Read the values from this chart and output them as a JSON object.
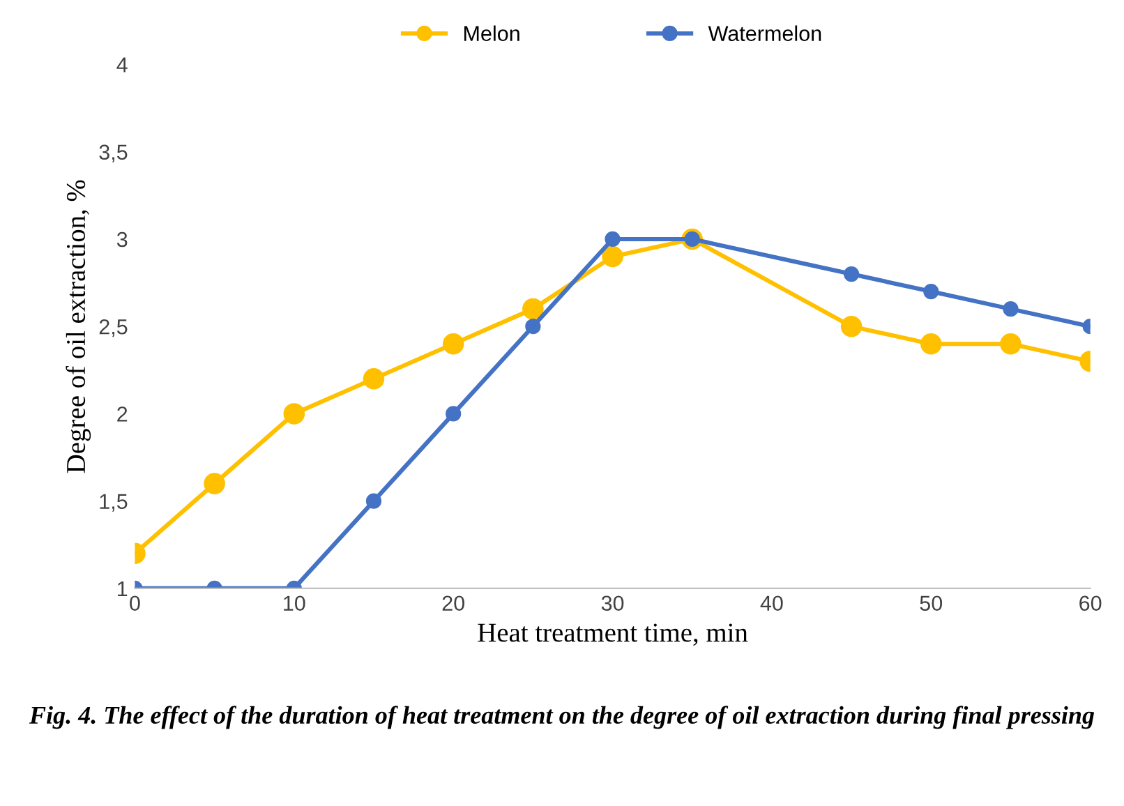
{
  "chart_data": {
    "type": "line",
    "xlabel": "Heat treatment time, min",
    "ylabel": "Degree of oil extraction, %",
    "x": [
      0,
      5,
      10,
      15,
      20,
      25,
      30,
      35,
      45,
      50,
      55,
      60
    ],
    "series": [
      {
        "name": "Melon",
        "color": "#ffc000",
        "values": [
          1.2,
          1.6,
          2.0,
          2.2,
          2.4,
          2.6,
          2.9,
          3.0,
          2.5,
          2.4,
          2.4,
          2.3
        ]
      },
      {
        "name": "Watermelon",
        "color": "#4472c4",
        "values": [
          1,
          1,
          1,
          1.5,
          2,
          2.5,
          3,
          3,
          2.8,
          2.7,
          2.6,
          2.5
        ]
      }
    ],
    "xlim": [
      0,
      60
    ],
    "xticks": [
      0,
      10,
      20,
      30,
      40,
      50,
      60
    ],
    "ylim": [
      1,
      4
    ],
    "yticks": [
      1,
      {
        "value": 1.5,
        "label": "1,5"
      },
      2,
      {
        "value": 2.5,
        "label": "2,5"
      },
      3,
      {
        "value": 3.5,
        "label": "3,5"
      },
      4
    ],
    "marker": "circle",
    "legend": "top",
    "grid": false,
    "annotations": [
      "Fig. 4. The effect of the duration of heat treatment on the degree of oil extraction during final pressing"
    ]
  }
}
